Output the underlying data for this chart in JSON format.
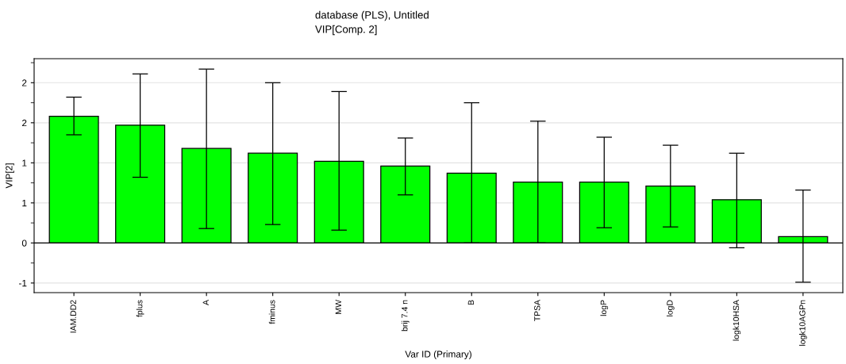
{
  "chart_data": {
    "type": "bar",
    "title": "database (PLS), Untitled",
    "subtitle": "VIP[Comp. 2]",
    "xlabel": "Var ID (Primary)",
    "ylabel": "VIP[2]",
    "categories": [
      "IAM.DD2",
      "fplus",
      "A",
      "fminus",
      "MW",
      "brij 7.4 n",
      "B",
      "TPSA",
      "logP",
      "logD",
      "logk10HSA",
      "logk10AGPn"
    ],
    "values": [
      1.58,
      1.47,
      1.18,
      1.12,
      1.02,
      0.96,
      0.87,
      0.76,
      0.76,
      0.71,
      0.54,
      0.08
    ],
    "errors": [
      [
        1.35,
        1.82
      ],
      [
        0.82,
        2.11
      ],
      [
        0.18,
        2.17
      ],
      [
        0.23,
        2.0
      ],
      [
        0.16,
        1.89
      ],
      [
        0.6,
        1.31
      ],
      [
        0.0,
        1.75
      ],
      [
        0.0,
        1.52
      ],
      [
        0.19,
        1.32
      ],
      [
        0.2,
        1.22
      ],
      [
        -0.06,
        1.12
      ],
      [
        -0.49,
        0.66
      ]
    ],
    "color": "#00ff00",
    "ylim": [
      -0.62,
      2.3
    ],
    "yticks": [
      {
        "value": -0.5,
        "label": "-1"
      },
      0,
      {
        "value": 0.5,
        "label": "1"
      },
      1,
      {
        "value": 1.5,
        "label": "2"
      },
      2
    ],
    "grid": "y",
    "legend": false
  }
}
